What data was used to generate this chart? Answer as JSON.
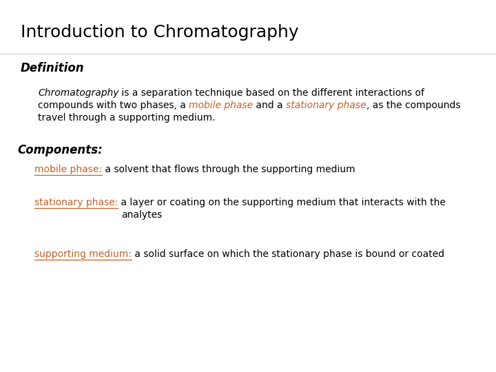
{
  "background_color": "#ffffff",
  "title": "Introduction to Chromatography",
  "title_color": "#000000",
  "title_fontsize": 18,
  "definition_label": "Definition",
  "definition_label_fontsize": 12,
  "definition_label_color": "#000000",
  "body_fontsize": 10,
  "body_color": "#000000",
  "orange_color": "#c0622a",
  "components_label": "Components:",
  "components_label_fontsize": 12,
  "components_label_color": "#000000",
  "fig_width": 7.2,
  "fig_height": 5.4,
  "dpi": 100
}
